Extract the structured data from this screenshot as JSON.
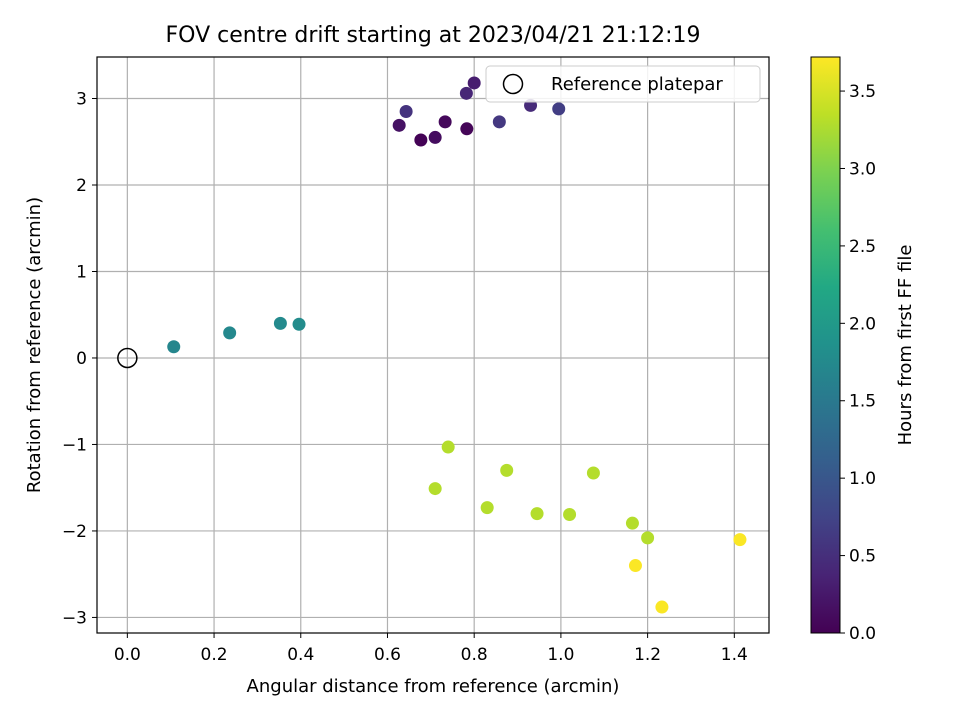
{
  "chart_data": {
    "type": "scatter",
    "title": "FOV centre drift starting at 2023/04/21 21:12:19",
    "xlabel": "Angular distance from reference (arcmin)",
    "ylabel": "Rotation from reference (arcmin)",
    "xlim": [
      -0.07,
      1.48
    ],
    "ylim": [
      -3.18,
      3.48
    ],
    "xticks": [
      0.0,
      0.2,
      0.4,
      0.6,
      0.8,
      1.0,
      1.2,
      1.4
    ],
    "xtick_labels": [
      "0.0",
      "0.2",
      "0.4",
      "0.6",
      "0.8",
      "1.0",
      "1.2",
      "1.4"
    ],
    "yticks": [
      -3,
      -2,
      -1,
      0,
      1,
      2,
      3
    ],
    "ytick_labels": [
      "−3",
      "−2",
      "−1",
      "0",
      "1",
      "2",
      "3"
    ],
    "grid": true,
    "legend": {
      "placement": "upper right",
      "entries": [
        "Reference platepar"
      ]
    },
    "reference_point": {
      "x": 0.0,
      "y": 0.0
    },
    "colorbar": {
      "label": "Hours from first FF file",
      "range": [
        0.0,
        3.72
      ],
      "ticks": [
        0.0,
        0.5,
        1.0,
        1.5,
        2.0,
        2.5,
        3.0,
        3.5
      ],
      "tick_labels": [
        "0.0",
        "0.5",
        "1.0",
        "1.5",
        "2.0",
        "2.5",
        "3.0",
        "3.5"
      ],
      "colormap": "viridis"
    },
    "points": [
      {
        "x": 0.677,
        "y": 2.52,
        "hours": 0.02
      },
      {
        "x": 0.783,
        "y": 2.65,
        "hours": 0.05
      },
      {
        "x": 0.733,
        "y": 2.73,
        "hours": 0.08
      },
      {
        "x": 0.71,
        "y": 2.55,
        "hours": 0.12
      },
      {
        "x": 0.627,
        "y": 2.69,
        "hours": 0.18
      },
      {
        "x": 0.8,
        "y": 3.18,
        "hours": 0.3
      },
      {
        "x": 0.782,
        "y": 3.06,
        "hours": 0.4
      },
      {
        "x": 0.93,
        "y": 2.92,
        "hours": 0.45
      },
      {
        "x": 0.643,
        "y": 2.85,
        "hours": 0.55
      },
      {
        "x": 0.858,
        "y": 2.73,
        "hours": 0.6
      },
      {
        "x": 0.995,
        "y": 2.88,
        "hours": 0.68
      },
      {
        "x": 0.107,
        "y": 0.13,
        "hours": 1.7
      },
      {
        "x": 0.236,
        "y": 0.29,
        "hours": 1.72
      },
      {
        "x": 0.353,
        "y": 0.4,
        "hours": 1.75
      },
      {
        "x": 0.396,
        "y": 0.39,
        "hours": 1.78
      },
      {
        "x": 0.74,
        "y": -1.03,
        "hours": 3.3
      },
      {
        "x": 0.71,
        "y": -1.51,
        "hours": 3.3
      },
      {
        "x": 0.875,
        "y": -1.3,
        "hours": 3.3
      },
      {
        "x": 0.83,
        "y": -1.73,
        "hours": 3.3
      },
      {
        "x": 0.945,
        "y": -1.8,
        "hours": 3.3
      },
      {
        "x": 1.02,
        "y": -1.81,
        "hours": 3.3
      },
      {
        "x": 1.075,
        "y": -1.33,
        "hours": 3.3
      },
      {
        "x": 1.165,
        "y": -1.91,
        "hours": 3.3
      },
      {
        "x": 1.2,
        "y": -2.08,
        "hours": 3.3
      },
      {
        "x": 1.172,
        "y": -2.4,
        "hours": 3.7
      },
      {
        "x": 1.233,
        "y": -2.88,
        "hours": 3.7
      },
      {
        "x": 1.413,
        "y": -2.1,
        "hours": 3.7
      }
    ]
  }
}
